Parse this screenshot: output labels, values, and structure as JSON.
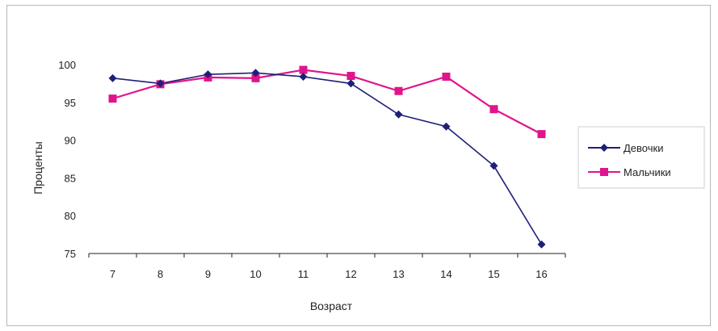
{
  "chart_data": {
    "type": "line",
    "title": "",
    "xlabel": "Возраст",
    "ylabel": "Проценты",
    "categories": [
      "7",
      "8",
      "9",
      "10",
      "11",
      "12",
      "13",
      "14",
      "15",
      "16"
    ],
    "ylim": [
      75,
      100
    ],
    "yticks": [
      75,
      80,
      85,
      90,
      95,
      100
    ],
    "grid": false,
    "legend_position": "right",
    "series": [
      {
        "name": "Девочки",
        "color": "#1f1f7a",
        "marker": "diamond",
        "values": [
          98.2,
          97.5,
          98.7,
          98.9,
          98.4,
          97.5,
          93.4,
          91.8,
          86.6,
          76.2
        ]
      },
      {
        "name": "Мальчики",
        "color": "#e0148c",
        "marker": "square",
        "values": [
          95.5,
          97.4,
          98.3,
          98.2,
          99.3,
          98.5,
          96.5,
          98.4,
          94.1,
          90.8
        ]
      }
    ]
  }
}
